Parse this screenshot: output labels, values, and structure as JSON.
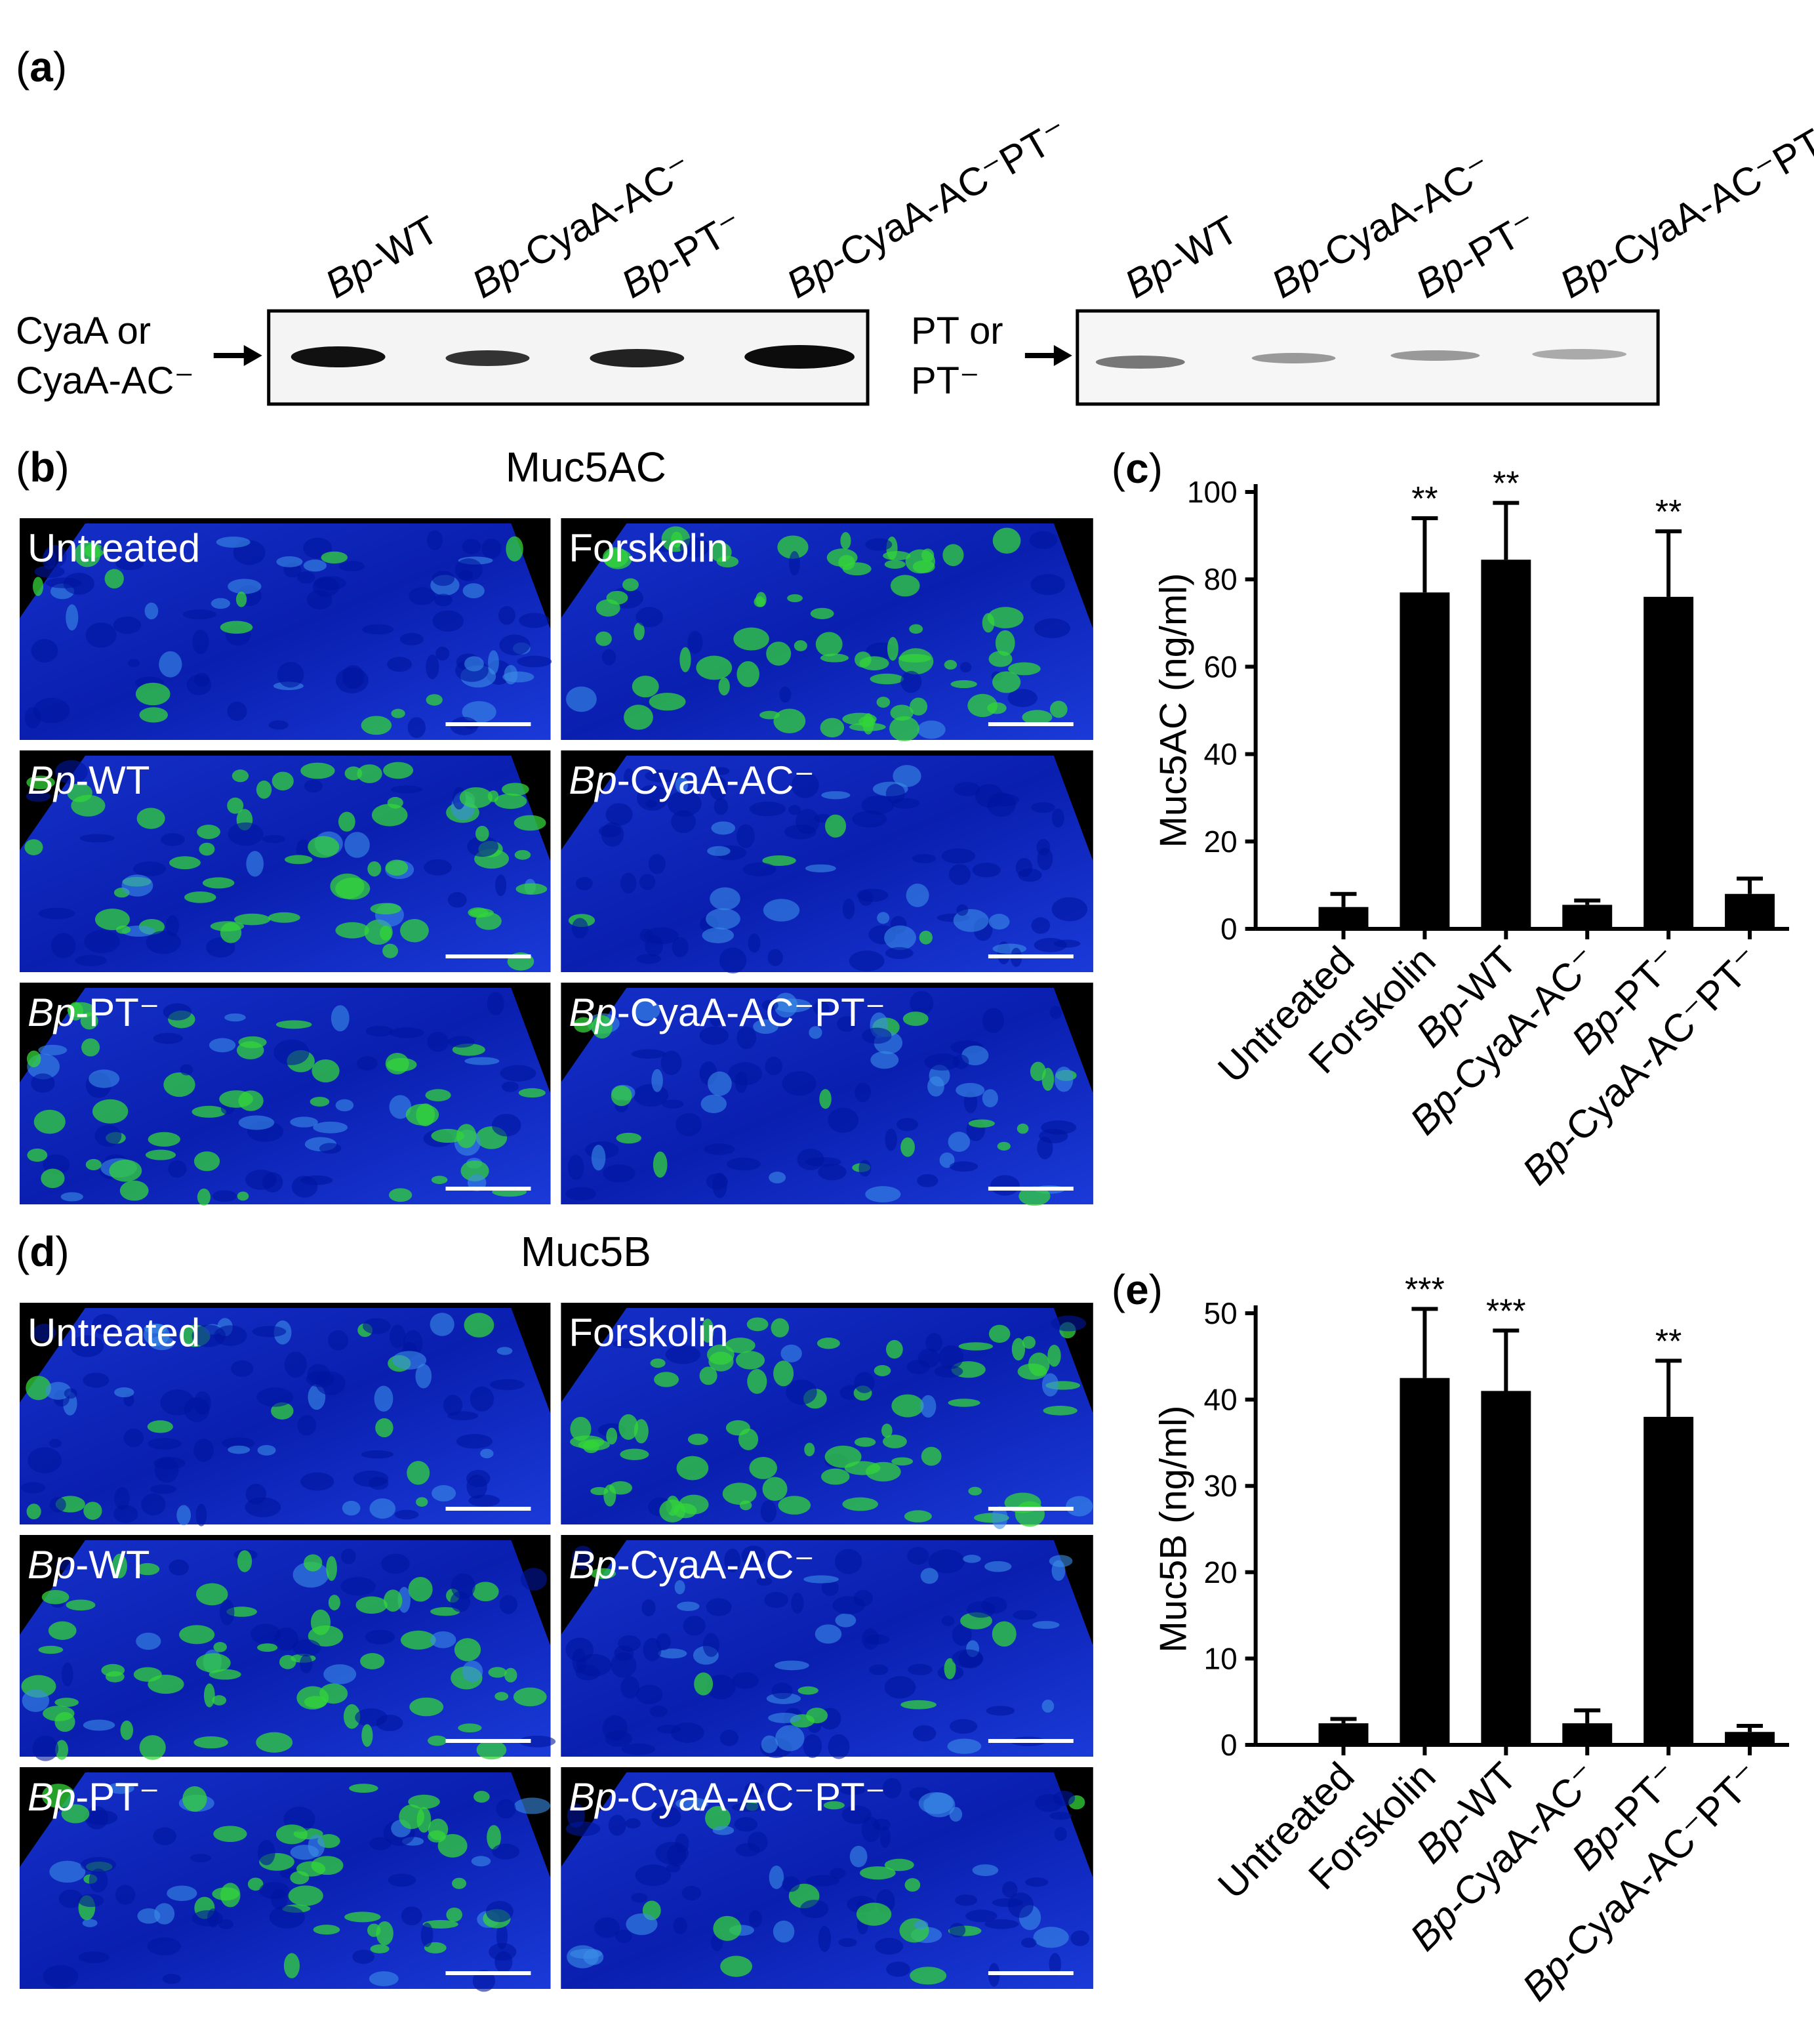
{
  "panel_a": {
    "label": "(a)",
    "blots": [
      {
        "side_label": [
          "CyaA or",
          "CyaA-AC⁻"
        ],
        "lanes": [
          "Bp-WT",
          "Bp-CyaA-AC⁻",
          "Bp-PT⁻",
          "Bp-CyaA-AC⁻PT⁻"
        ]
      },
      {
        "side_label": [
          "PT or",
          "PT⁻"
        ],
        "lanes": [
          "Bp-WT",
          "Bp-CyaA-AC⁻",
          "Bp-PT⁻",
          "Bp-CyaA-AC⁻PT⁻"
        ]
      }
    ]
  },
  "panel_b": {
    "label": "(b)",
    "title": "Muc5AC",
    "images": [
      "Untreated",
      "Forskolin",
      "Bp-WT",
      "Bp-CyaA-AC⁻",
      "Bp-PT⁻",
      "Bp-CyaA-AC⁻PT⁻"
    ]
  },
  "panel_d": {
    "label": "(d)",
    "title": "Muc5B",
    "images": [
      "Untreated",
      "Forskolin",
      "Bp-WT",
      "Bp-CyaA-AC⁻",
      "Bp-PT⁻",
      "Bp-CyaA-AC⁻PT⁻"
    ]
  },
  "chart_data": [
    {
      "type": "bar",
      "panel_label": "(c)",
      "y_label": "Muc5AC (ng/ml)",
      "categories": [
        "Untreated",
        "Forskolin",
        "Bp-WT",
        "Bp-CyaA-AC⁻",
        "Bp-PT⁻",
        "Bp-CyaA-AC⁻PT⁻"
      ],
      "values": [
        5,
        77,
        84.5,
        5.5,
        76,
        8
      ],
      "errors": [
        3,
        17,
        13,
        1,
        15,
        3.5
      ],
      "significance": [
        null,
        "**",
        "**",
        null,
        "**",
        null
      ],
      "color": "#000000",
      "ylim": [
        0,
        100
      ],
      "yticks": [
        0,
        20,
        40,
        60,
        80,
        100
      ]
    },
    {
      "type": "bar",
      "panel_label": "(e)",
      "y_label": "Muc5B (ng/ml)",
      "categories": [
        "Untreated",
        "Forskolin",
        "Bp-WT",
        "Bp-CyaA-AC⁻",
        "Bp-PT⁻",
        "Bp-CyaA-AC⁻PT⁻"
      ],
      "values": [
        2.5,
        42.5,
        41,
        2.5,
        38,
        1.5
      ],
      "errors": [
        0.5,
        8,
        7,
        1.5,
        6.5,
        0.7
      ],
      "significance": [
        null,
        "***",
        "***",
        null,
        "**",
        null
      ],
      "color": "#000000",
      "ylim": [
        0,
        50
      ],
      "yticks": [
        0,
        10,
        20,
        30,
        40,
        50
      ]
    }
  ]
}
